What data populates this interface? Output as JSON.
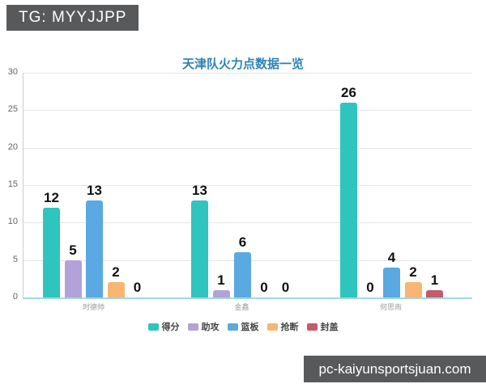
{
  "header": {
    "tg_label": "TG: MYYJJPP"
  },
  "chart_data": {
    "type": "bar",
    "title": "天津队火力点数据一览",
    "categories": [
      "时德帅",
      "金鑫",
      "何思雨"
    ],
    "series": [
      {
        "name": "得分",
        "color": "#2fc5be",
        "values": [
          12,
          13,
          26
        ]
      },
      {
        "name": "助攻",
        "color": "#b2a2d8",
        "values": [
          5,
          1,
          0
        ]
      },
      {
        "name": "篮板",
        "color": "#5aa9e2",
        "values": [
          13,
          6,
          4
        ]
      },
      {
        "name": "抢断",
        "color": "#f8b573",
        "values": [
          2,
          0,
          2
        ]
      },
      {
        "name": "封盖",
        "color": "#c25b6b",
        "values": [
          0,
          0,
          1
        ]
      }
    ],
    "xlabel": "",
    "ylabel": "",
    "ylim": [
      0,
      30
    ],
    "ytick_step": 5,
    "yticks": [
      0,
      5,
      10,
      15,
      20,
      25,
      30
    ],
    "grid": true,
    "legend_position": "bottom"
  },
  "footer": {
    "watermark": "pc-kaiyunsportsjuan.com"
  },
  "colors": {
    "badge_bg": "#58595b",
    "badge_text": "#ffffff",
    "title": "#2d82b5",
    "grid_line": "#e4e4e4",
    "y_axis_line": "#cccccc",
    "x_axis_line": "#a2d9db",
    "tick_text": "#666666",
    "category_text": "#999999",
    "value_label": "#111111",
    "legend_text": "#444444",
    "background": "#ffffff"
  }
}
